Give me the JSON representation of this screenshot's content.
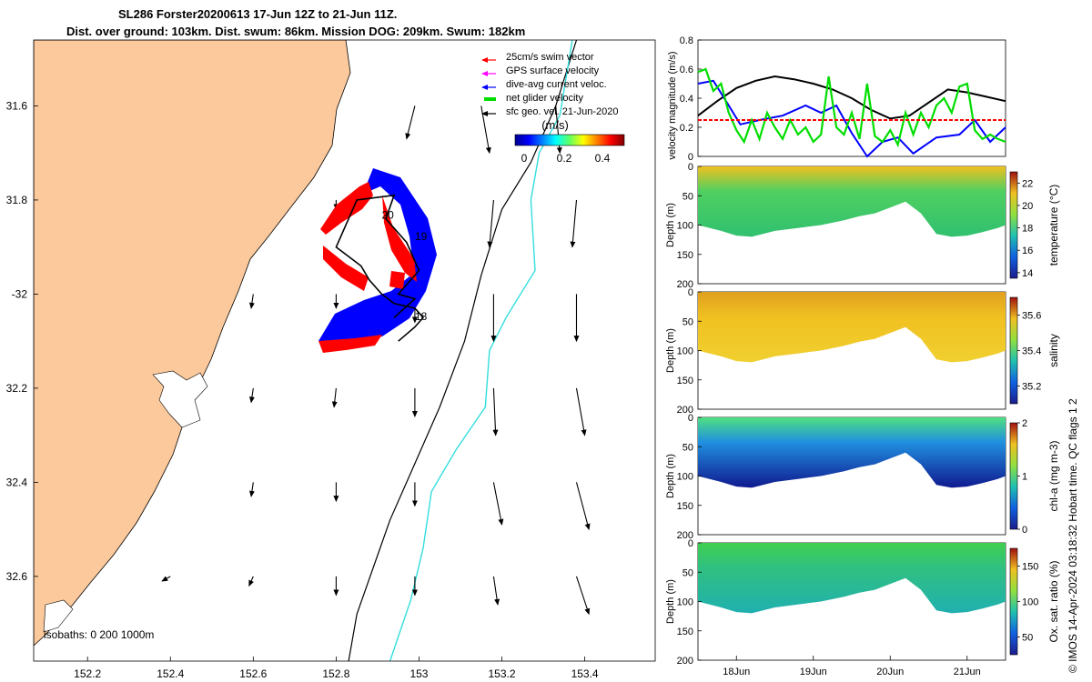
{
  "title": {
    "line1": "SL286 Forster20200613 17-Jun 12Z to 21-Jun 11Z.",
    "line2": "Dist. over ground: 103km. Dist. swum: 86km. Mission DOG: 209km. Swum: 182km"
  },
  "stamp": "© IMOS 14-Apr-2024 03:18:32 Hobart time. QC flags 1  2",
  "colors": {
    "land": "#fbc99c",
    "swim_vector": "#ff0000",
    "gps_velocity": "#ff00ff",
    "dive_current": "#0000ff",
    "net_glider": "#00dd00",
    "geo_vel": "#000000",
    "isobath_200": "#000000",
    "isobath_1000": "#33dddd"
  },
  "chart_data": [
    {
      "type": "map",
      "xlim": [
        152.07,
        153.57
      ],
      "ylim": [
        -32.78,
        -31.46
      ],
      "xticks": [
        152.2,
        152.4,
        152.6,
        152.8,
        153,
        153.2,
        153.4
      ],
      "xtick_labels": [
        "152.2",
        "152.4",
        "152.6",
        "152.8",
        "153",
        "153.2",
        "153.4"
      ],
      "yticks": [
        -31.6,
        -31.8,
        -32,
        -32.2,
        -32.4,
        -32.6
      ],
      "ytick_labels": [
        "31.6",
        "31.8",
        "-32",
        "32.2",
        "32.4",
        "32.6"
      ],
      "legend": [
        {
          "label": "25cm/s swim vector",
          "color": "#ff0000"
        },
        {
          "label": "GPS surface velocity",
          "color": "#ff00ff"
        },
        {
          "label": "dive-avg current veloc.",
          "color": "#0000ff"
        },
        {
          "label": "net glider velocity",
          "color": "#00dd00"
        },
        {
          "label": "sfc geo. vel. 21-Jun-2020",
          "color": "#000000"
        }
      ],
      "colorbar": {
        "unit": "(m/s)",
        "ticks": [
          "0",
          "0.2",
          "0.4"
        ],
        "range": [
          0,
          0.5
        ]
      },
      "day_labels": [
        {
          "text": "20",
          "lon": 152.91,
          "lat": -31.84
        },
        {
          "text": "19",
          "lon": 152.99,
          "lat": -31.885
        },
        {
          "text": "18",
          "lon": 152.99,
          "lat": -32.055
        }
      ],
      "isobaths_label": "isobaths: 0   200  1000m",
      "geo_vectors": [
        {
          "lon": 152.99,
          "lat": -31.6,
          "dlon": -0.02,
          "dlat": -0.07
        },
        {
          "lon": 153.15,
          "lat": -31.6,
          "dlon": 0.02,
          "dlat": -0.1
        },
        {
          "lon": 153.33,
          "lat": -31.6,
          "dlon": 0.01,
          "dlat": -0.1
        },
        {
          "lon": 152.8,
          "lat": -31.8,
          "dlon": 0.0,
          "dlat": -0.02
        },
        {
          "lon": 152.99,
          "lat": -31.8,
          "dlon": 0.01,
          "dlat": -0.05
        },
        {
          "lon": 153.18,
          "lat": -31.8,
          "dlon": -0.01,
          "dlat": -0.1
        },
        {
          "lon": 153.38,
          "lat": -31.8,
          "dlon": -0.01,
          "dlat": -0.1
        },
        {
          "lon": 152.6,
          "lat": -32.0,
          "dlon": -0.005,
          "dlat": -0.03
        },
        {
          "lon": 152.8,
          "lat": -32.0,
          "dlon": 0.0,
          "dlat": -0.03
        },
        {
          "lon": 152.99,
          "lat": -32.0,
          "dlon": 0.0,
          "dlat": -0.06
        },
        {
          "lon": 153.18,
          "lat": -32.0,
          "dlon": 0.0,
          "dlat": -0.1
        },
        {
          "lon": 153.38,
          "lat": -32.0,
          "dlon": 0.0,
          "dlat": -0.1
        },
        {
          "lon": 152.6,
          "lat": -32.2,
          "dlon": -0.005,
          "dlat": -0.03
        },
        {
          "lon": 152.8,
          "lat": -32.2,
          "dlon": -0.005,
          "dlat": -0.04
        },
        {
          "lon": 152.99,
          "lat": -32.2,
          "dlon": 0.0,
          "dlat": -0.06
        },
        {
          "lon": 153.18,
          "lat": -32.2,
          "dlon": 0.005,
          "dlat": -0.1
        },
        {
          "lon": 153.38,
          "lat": -32.2,
          "dlon": 0.02,
          "dlat": -0.1
        },
        {
          "lon": 152.6,
          "lat": -32.4,
          "dlon": -0.005,
          "dlat": -0.03
        },
        {
          "lon": 152.8,
          "lat": -32.4,
          "dlon": 0.0,
          "dlat": -0.04
        },
        {
          "lon": 152.99,
          "lat": -32.4,
          "dlon": 0.0,
          "dlat": -0.05
        },
        {
          "lon": 153.18,
          "lat": -32.4,
          "dlon": 0.02,
          "dlat": -0.09
        },
        {
          "lon": 153.38,
          "lat": -32.4,
          "dlon": 0.03,
          "dlat": -0.1
        },
        {
          "lon": 152.4,
          "lat": -32.6,
          "dlon": -0.02,
          "dlat": -0.01
        },
        {
          "lon": 152.6,
          "lat": -32.6,
          "dlon": -0.01,
          "dlat": -0.02
        },
        {
          "lon": 152.8,
          "lat": -32.6,
          "dlon": 0.0,
          "dlat": -0.04
        },
        {
          "lon": 152.99,
          "lat": -32.6,
          "dlon": 0.0,
          "dlat": -0.04
        },
        {
          "lon": 153.18,
          "lat": -32.6,
          "dlon": 0.01,
          "dlat": -0.06
        },
        {
          "lon": 153.38,
          "lat": -32.6,
          "dlon": 0.03,
          "dlat": -0.08
        }
      ],
      "glider_track": {
        "lon": [
          152.94,
          152.99,
          152.95,
          153.0,
          152.97,
          152.92,
          152.94,
          152.85,
          152.8,
          152.86,
          152.88,
          152.91,
          152.94,
          152.99,
          153.01,
          152.99,
          152.95
        ],
        "lat": [
          -32.05,
          -32.01,
          -32.0,
          -31.95,
          -31.89,
          -31.84,
          -31.79,
          -31.8,
          -31.9,
          -31.94,
          -31.97,
          -32.0,
          -32.02,
          -32.03,
          -32.05,
          -32.07,
          -32.1
        ]
      }
    },
    {
      "type": "line",
      "ylabel": "velocity magnitude (m/s)",
      "ylim": [
        0,
        0.8
      ],
      "yticks": [
        0,
        0.2,
        0.4,
        0.6,
        0.8
      ],
      "x_unit": "days since 17-Jun 00Z",
      "xlim": [
        0.5,
        4.5
      ],
      "series": [
        {
          "name": "sfc geo. vel.",
          "color": "#000000",
          "x": [
            0.5,
            0.75,
            1.0,
            1.25,
            1.5,
            1.75,
            2.0,
            2.25,
            2.5,
            2.75,
            3.0,
            3.25,
            3.5,
            3.75,
            4.0,
            4.25,
            4.5
          ],
          "y": [
            0.28,
            0.38,
            0.47,
            0.52,
            0.55,
            0.53,
            0.5,
            0.46,
            0.4,
            0.32,
            0.26,
            0.28,
            0.37,
            0.46,
            0.44,
            0.41,
            0.38
          ]
        },
        {
          "name": "dive-avg current",
          "color": "#0000ff",
          "x": [
            0.5,
            0.7,
            0.9,
            1.05,
            1.3,
            1.6,
            1.9,
            2.1,
            2.3,
            2.5,
            2.7,
            2.9,
            3.1,
            3.3,
            3.6,
            3.9,
            4.1,
            4.3,
            4.5
          ],
          "y": [
            0.5,
            0.52,
            0.35,
            0.22,
            0.25,
            0.28,
            0.35,
            0.3,
            0.35,
            0.16,
            0.0,
            0.1,
            0.13,
            0.02,
            0.13,
            0.15,
            0.25,
            0.1,
            0.2
          ]
        },
        {
          "name": "net glider velocity",
          "color": "#00dd00",
          "x": [
            0.5,
            0.6,
            0.7,
            0.8,
            0.9,
            1.0,
            1.1,
            1.2,
            1.3,
            1.4,
            1.5,
            1.6,
            1.7,
            1.8,
            1.9,
            2.0,
            2.1,
            2.2,
            2.3,
            2.4,
            2.5,
            2.6,
            2.7,
            2.8,
            2.9,
            3.0,
            3.1,
            3.2,
            3.3,
            3.4,
            3.5,
            3.6,
            3.7,
            3.8,
            3.9,
            4.0,
            4.1,
            4.2,
            4.3,
            4.4,
            4.5
          ],
          "y": [
            0.58,
            0.6,
            0.45,
            0.5,
            0.3,
            0.18,
            0.1,
            0.25,
            0.12,
            0.3,
            0.2,
            0.12,
            0.25,
            0.15,
            0.2,
            0.1,
            0.15,
            0.55,
            0.2,
            0.15,
            0.3,
            0.12,
            0.5,
            0.14,
            0.1,
            0.18,
            0.08,
            0.3,
            0.15,
            0.3,
            0.2,
            0.35,
            0.4,
            0.3,
            0.48,
            0.5,
            0.18,
            0.12,
            0.15,
            0.12,
            0.1
          ]
        },
        {
          "name": "swim speed",
          "color": "#ff0000",
          "x": [
            0.5,
            4.5
          ],
          "y": [
            0.25,
            0.25
          ]
        }
      ]
    },
    {
      "type": "heatmap",
      "variable": "temperature",
      "ylabel": "Depth (m)",
      "cbar_label": "temperature (°C)",
      "ylim": [
        200,
        0
      ],
      "yticks": [
        0,
        50,
        100,
        150,
        200
      ],
      "cbar_range": [
        13.5,
        23
      ],
      "cbar_ticks": [
        14,
        16,
        18,
        20,
        22
      ],
      "surface_value": 21.5,
      "bottom_value": 17
    },
    {
      "type": "heatmap",
      "variable": "salinity",
      "ylabel": "Depth (m)",
      "cbar_label": "salinity",
      "ylim": [
        200,
        0
      ],
      "yticks": [
        0,
        50,
        100,
        150,
        200
      ],
      "cbar_range": [
        35.1,
        35.7
      ],
      "cbar_ticks": [
        35.2,
        35.4,
        35.6
      ],
      "surface_value": 35.55,
      "bottom_value": 35.48
    },
    {
      "type": "heatmap",
      "variable": "chl-a",
      "ylabel": "Depth (m)",
      "cbar_label": "chl-a (mg m-3)",
      "ylim": [
        200,
        0
      ],
      "yticks": [
        0,
        50,
        100,
        150,
        200
      ],
      "cbar_range": [
        0,
        2
      ],
      "cbar_ticks": [
        0,
        1,
        2
      ],
      "surface_value": 1.1,
      "bottom_value": 0.2
    },
    {
      "type": "heatmap",
      "variable": "oxygen",
      "ylabel": "Depth (m)",
      "cbar_label": "Ox. sat. ratio (%)",
      "ylim": [
        200,
        0
      ],
      "yticks": [
        0,
        50,
        100,
        150,
        200
      ],
      "cbar_range": [
        25,
        175
      ],
      "cbar_ticks": [
        50,
        100,
        150
      ],
      "surface_value": 118,
      "bottom_value": 95
    }
  ],
  "time_axis": {
    "tick_days": [
      1,
      2,
      3,
      4
    ],
    "tick_labels": [
      "18Jun",
      "19Jun",
      "20Jun",
      "21Jun"
    ]
  },
  "section_bottom": {
    "x": [
      0.5,
      0.8,
      1.0,
      1.2,
      1.5,
      1.8,
      2.1,
      2.4,
      2.6,
      2.8,
      3.0,
      3.2,
      3.4,
      3.6,
      3.8,
      4.0,
      4.2,
      4.4,
      4.5
    ],
    "depth": [
      100,
      110,
      118,
      120,
      110,
      105,
      100,
      92,
      85,
      80,
      70,
      60,
      80,
      115,
      120,
      118,
      112,
      105,
      100
    ]
  }
}
